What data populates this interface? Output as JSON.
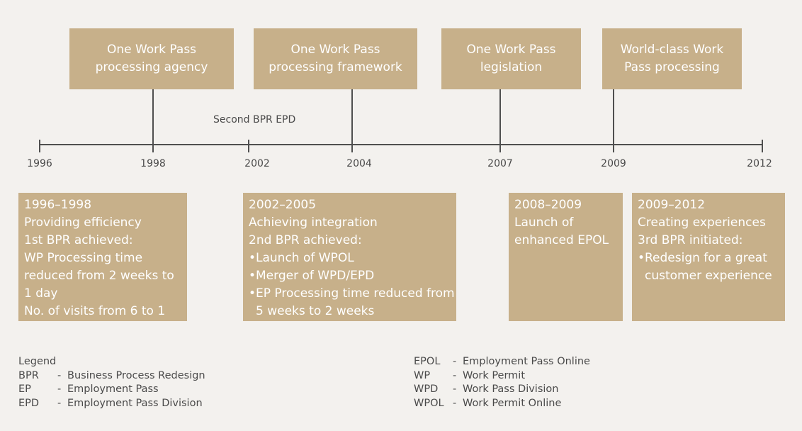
{
  "top_boxes": [
    {
      "label": "One Work Pass\nprocessing agency"
    },
    {
      "label": "One Work Pass\nprocessing framework"
    },
    {
      "label": "One Work Pass\nlegislation"
    },
    {
      "label": "World-class Work\nPass processing"
    }
  ],
  "timeline": {
    "years": [
      "1996",
      "1998",
      "2002",
      "2004",
      "2007",
      "2009",
      "2012"
    ],
    "annotation": "Second BPR EPD"
  },
  "bottom_boxes": [
    {
      "period": "1996–1998",
      "lines": [
        "Providing efficiency",
        "1st BPR achieved:",
        "WP Processing time",
        "reduced from 2 weeks to",
        "1 day",
        "No. of visits from 6 to 1"
      ]
    },
    {
      "period": "2002–2005",
      "lines": [
        "Achieving integration",
        "2nd BPR achieved:"
      ],
      "bullets": [
        "Launch of WPOL",
        "Merger of WPD/EPD",
        "EP Processing time reduced from",
        "5 weeks to 2 weeks"
      ]
    },
    {
      "period": "2008–2009",
      "lines": [
        "Launch of",
        "enhanced EPOL"
      ]
    },
    {
      "period": "2009–2012",
      "lines": [
        "Creating experiences",
        "3rd BPR initiated:"
      ],
      "bullets": [
        "Redesign for a great",
        "customer experience"
      ]
    }
  ],
  "legend": {
    "title": "Legend",
    "left": [
      {
        "abbr": "BPR",
        "dash": "-",
        "meaning": "Business Process Redesign"
      },
      {
        "abbr": "EP",
        "dash": "-",
        "meaning": "Employment Pass"
      },
      {
        "abbr": "EPD",
        "dash": "-",
        "meaning": "Employment Pass Division"
      }
    ],
    "right": [
      {
        "abbr": "EPOL",
        "dash": "-",
        "meaning": "Employment Pass Online"
      },
      {
        "abbr": "WP",
        "dash": "-",
        "meaning": "Work Permit"
      },
      {
        "abbr": "WPD",
        "dash": "-",
        "meaning": "Work Pass Division"
      },
      {
        "abbr": "WPOL",
        "dash": "-",
        "meaning": "Work Permit Online"
      }
    ]
  },
  "colors": {
    "box": "#c7b08a",
    "box_text": "#ffffff",
    "line": "#4f4f4f",
    "text": "#4a4a4a",
    "background": "#f3f1ee"
  }
}
